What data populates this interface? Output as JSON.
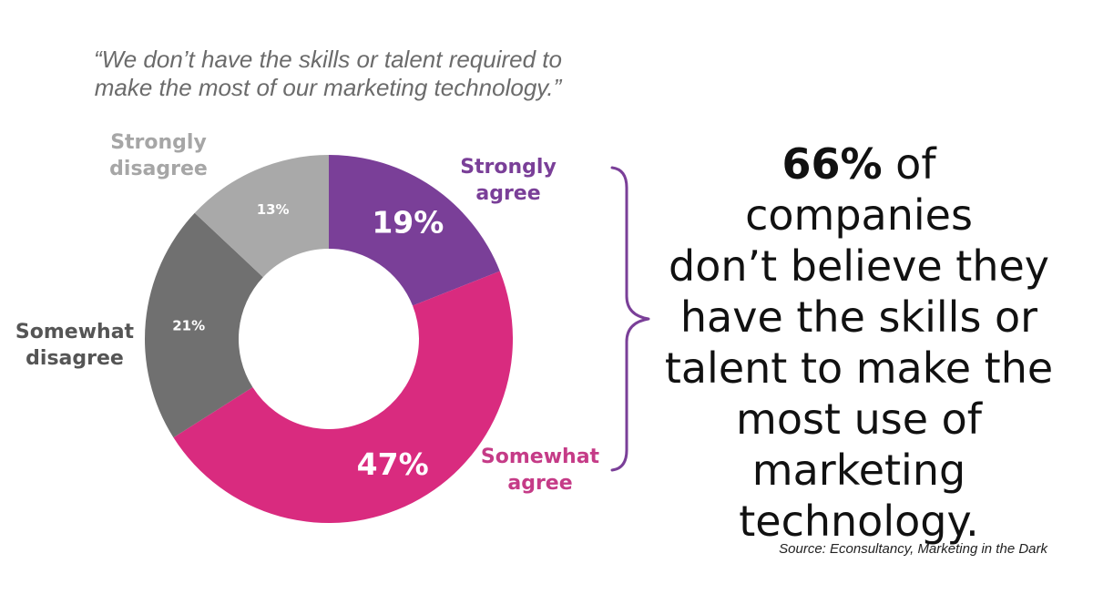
{
  "quote": {
    "lines": [
      "“We don’t have the skills or talent required to",
      "make the most of our marketing technology.”"
    ]
  },
  "chart_data": {
    "type": "pie",
    "donut": true,
    "start": "12 o'clock",
    "direction": "clockwise",
    "slices": [
      {
        "label": "Strongly agree",
        "value": 19,
        "value_label": "19%",
        "color": "#7a3f98",
        "label_color": "#7a3f98"
      },
      {
        "label": "Somewhat agree",
        "value": 47,
        "value_label": "47%",
        "color": "#d92b7f",
        "label_color": "#c53b87"
      },
      {
        "label": "Somewhat disagree",
        "value": 21,
        "value_label": "21%",
        "color": "#707070",
        "label_color": "#555555"
      },
      {
        "label": "Strongly disagree",
        "value": 13,
        "value_label": "13%",
        "color": "#a9a9a9",
        "label_color": "#a6a6a6"
      }
    ],
    "bracket_color": "#7a3f98"
  },
  "callout": {
    "highlight": "66%",
    "line1_rest": " of companies",
    "lines": [
      "don’t believe they",
      "have the skills or",
      "talent to make the",
      "most use of",
      "marketing",
      "technology."
    ]
  },
  "source": "Source: Econsultancy, Marketing in the Dark"
}
